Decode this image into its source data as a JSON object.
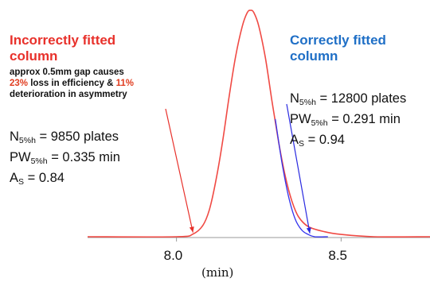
{
  "colors": {
    "incorrect": "#e8312b",
    "correct": "#1f6fc6",
    "incorrect_curve": "#f04a44",
    "correct_curve": "#3333ee",
    "highlight": "#e03c1f",
    "text": "#111111"
  },
  "left_panel": {
    "title_line1": "Incorrectly fitted",
    "title_line2": "column",
    "note_line1": "approx 0.5mm gap causes",
    "note_pct1": "23%",
    "note_mid": " loss in efficiency & ",
    "note_pct2": "11%",
    "note_line3": "deterioration in asymmetry",
    "n_prefix": "N",
    "n_sub": "5%h",
    "n_value": " = 9850 plates",
    "pw_prefix": "PW",
    "pw_sub": "5%h",
    "pw_value": " = 0.335 min",
    "as_prefix": "A",
    "as_sub": "S",
    "as_value": " = 0.84"
  },
  "right_panel": {
    "title_line1": "Correctly fitted",
    "title_line2": "column",
    "n_prefix": "N",
    "n_sub": "5%h",
    "n_value": " = 12800 plates",
    "pw_prefix": "PW",
    "pw_sub": "5%h",
    "pw_value": " = 0.291 min",
    "as_prefix": "A",
    "as_sub": "S",
    "as_value": " = 0.94"
  },
  "chart_data": {
    "type": "line",
    "xlabel": "(min)",
    "ylabel": "",
    "xlim": [
      7.73,
      8.77
    ],
    "ylim": [
      0,
      1
    ],
    "x_ticks": [
      {
        "value": 8.0,
        "label": "8.0"
      },
      {
        "value": 8.5,
        "label": "8.5"
      }
    ],
    "grid": false,
    "peak_retention_time": 8.225,
    "series": [
      {
        "key": "incorrect",
        "points": [
          [
            7.73,
            0.0
          ],
          [
            8.0,
            0.0
          ],
          [
            8.05,
            0.012
          ],
          [
            8.08,
            0.05
          ],
          [
            8.1,
            0.12
          ],
          [
            8.12,
            0.25
          ],
          [
            8.14,
            0.42
          ],
          [
            8.16,
            0.62
          ],
          [
            8.18,
            0.8
          ],
          [
            8.2,
            0.93
          ],
          [
            8.215,
            0.99
          ],
          [
            8.225,
            1.0
          ],
          [
            8.235,
            0.99
          ],
          [
            8.25,
            0.93
          ],
          [
            8.27,
            0.79
          ],
          [
            8.29,
            0.6
          ],
          [
            8.31,
            0.42
          ],
          [
            8.33,
            0.27
          ],
          [
            8.35,
            0.16
          ],
          [
            8.37,
            0.09
          ],
          [
            8.4,
            0.045
          ],
          [
            8.45,
            0.022
          ],
          [
            8.5,
            0.01
          ],
          [
            8.6,
            0.0
          ],
          [
            8.77,
            0.0
          ]
        ]
      },
      {
        "key": "correct",
        "points": [
          [
            8.3,
            0.52
          ],
          [
            8.32,
            0.33
          ],
          [
            8.34,
            0.18
          ],
          [
            8.36,
            0.08
          ],
          [
            8.38,
            0.03
          ],
          [
            8.4,
            0.01
          ],
          [
            8.42,
            0.0
          ],
          [
            8.46,
            0.0
          ]
        ]
      }
    ],
    "annotations": [
      {
        "key": "incorrect",
        "points_to": [
          8.05,
          0.012
        ]
      },
      {
        "key": "correct",
        "points_to": [
          8.405,
          0.008
        ]
      }
    ]
  }
}
